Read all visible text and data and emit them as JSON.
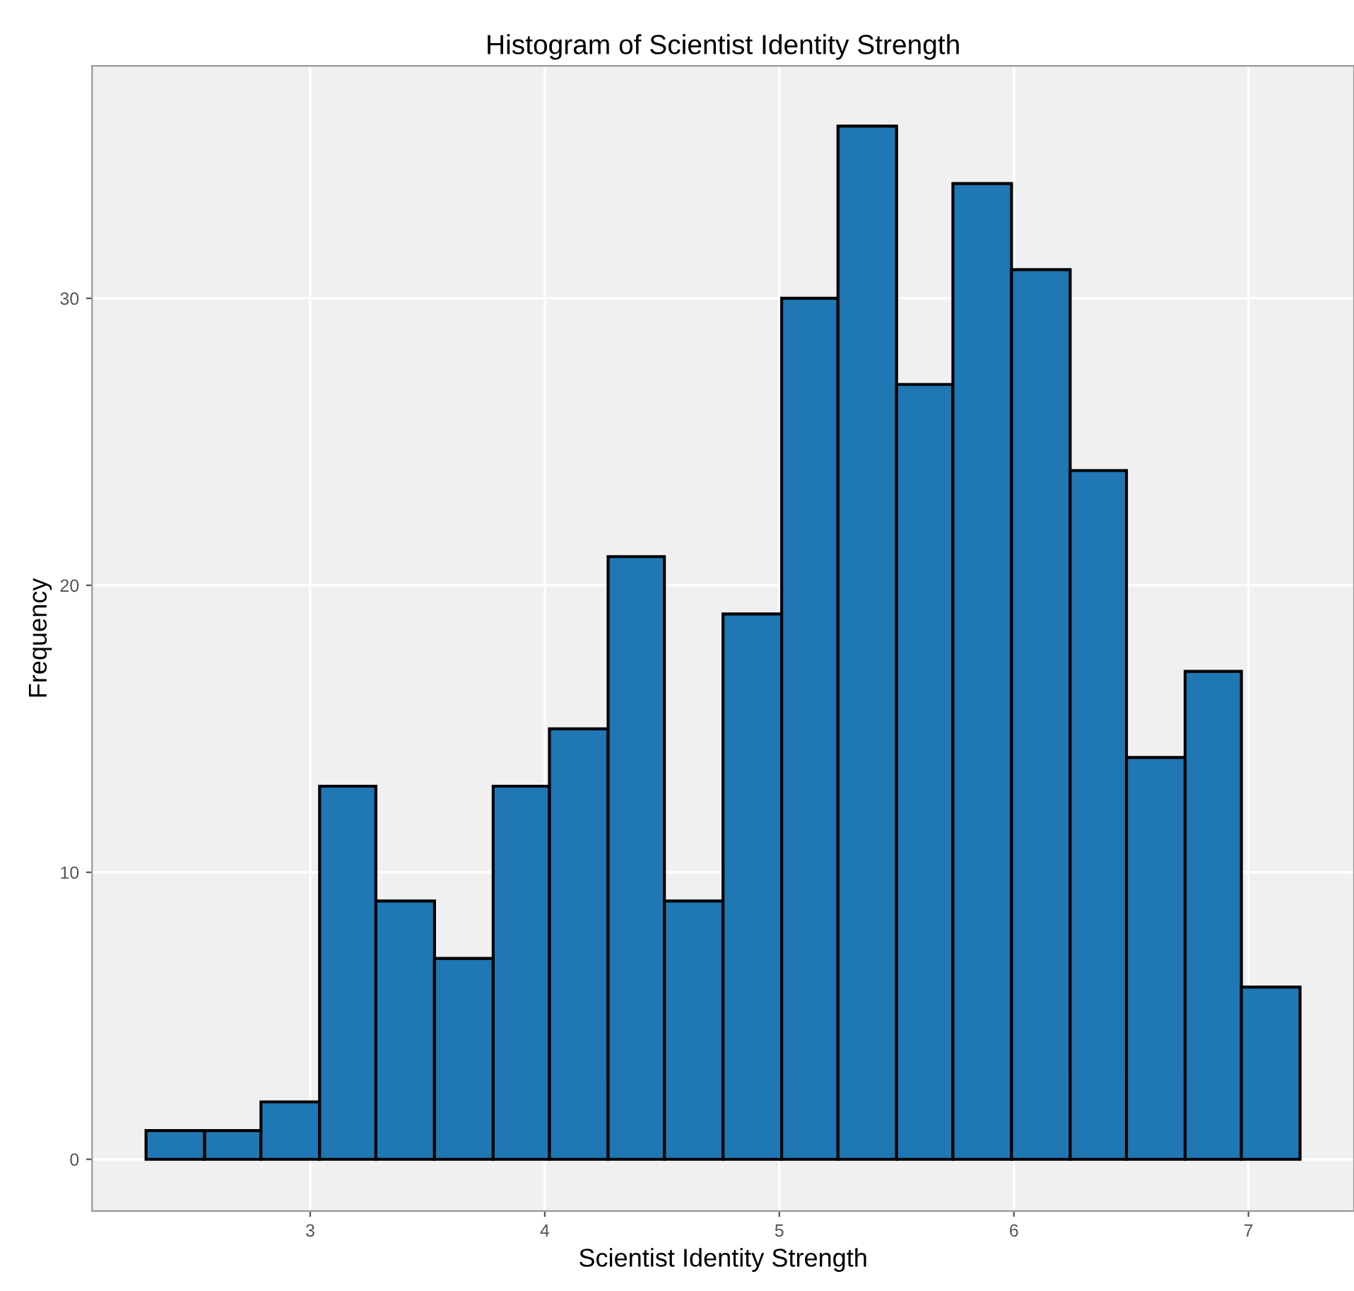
{
  "chart_data": {
    "type": "histogram",
    "title": "Histogram of Scientist Identity Strength",
    "xlabel": "Scientist Identity Strength",
    "ylabel": "Frequency",
    "bins": [
      2.3,
      2.55,
      2.79,
      3.04,
      3.28,
      3.53,
      3.78,
      4.02,
      4.27,
      4.51,
      4.76,
      5.01,
      5.25,
      5.5,
      5.74,
      5.99,
      6.24,
      6.48,
      6.73,
      6.97,
      7.22
    ],
    "values": [
      1,
      1,
      2,
      13,
      9,
      7,
      13,
      15,
      21,
      9,
      19,
      30,
      36,
      27,
      34,
      31,
      24,
      14,
      17,
      6
    ],
    "color": "#1f77b4",
    "xlim": [
      2.07,
      7.45
    ],
    "ylim": [
      -1.8,
      38.1
    ],
    "xticks": [
      3,
      4,
      5,
      6,
      7
    ],
    "yticks": [
      0,
      10,
      20,
      30
    ],
    "grid": true
  }
}
